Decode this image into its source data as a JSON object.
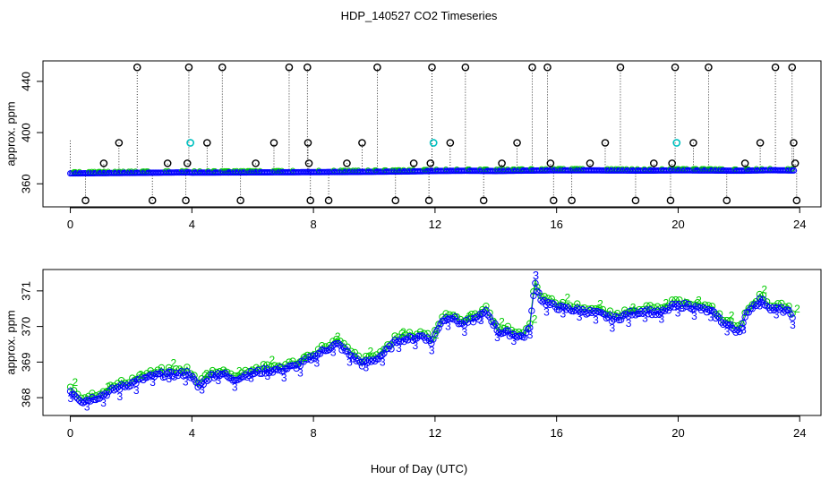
{
  "figure_title": "HDP_140527  CO2 Timeseries",
  "shared_xlabel": "Hour of Day (UTC)",
  "colors": {
    "axis": "#000000",
    "series_1": "#00cc00",
    "series_2": "#0000ff",
    "outlier": "#000000",
    "flag": "#00c0c0"
  },
  "chart_data": [
    {
      "type": "scatter",
      "panel": "top",
      "title": "",
      "xlabel": "",
      "ylabel": "approx. ppm",
      "xlim": [
        -0.9,
        24.7
      ],
      "ylim": [
        342,
        456
      ],
      "xticks": [
        0,
        4,
        8,
        12,
        16,
        20,
        24
      ],
      "yticks": [
        360,
        400,
        440
      ],
      "baseline": [
        [
          0.0,
          368.1
        ],
        [
          1.0,
          368.3
        ],
        [
          2.0,
          368.5
        ],
        [
          3.0,
          368.7
        ],
        [
          3.9,
          368.9
        ],
        [
          4.0,
          368.7
        ],
        [
          5.0,
          368.8
        ],
        [
          6.0,
          368.9
        ],
        [
          7.0,
          369.0
        ],
        [
          8.0,
          369.1
        ],
        [
          9.0,
          369.2
        ],
        [
          10.0,
          369.4
        ],
        [
          11.0,
          369.6
        ],
        [
          12.0,
          370.0
        ],
        [
          13.0,
          370.2
        ],
        [
          14.0,
          370.0
        ],
        [
          15.0,
          370.3
        ],
        [
          16.0,
          370.5
        ],
        [
          17.0,
          370.5
        ],
        [
          18.0,
          370.4
        ],
        [
          19.0,
          370.3
        ],
        [
          20.0,
          370.5
        ],
        [
          21.0,
          370.4
        ],
        [
          22.0,
          370.2
        ],
        [
          23.0,
          370.6
        ],
        [
          23.8,
          370.4
        ]
      ],
      "outliers": [
        [
          0.5,
          347
        ],
        [
          1.1,
          376
        ],
        [
          1.6,
          392
        ],
        [
          2.2,
          451
        ],
        [
          2.7,
          347
        ],
        [
          3.2,
          376
        ],
        [
          3.8,
          347
        ],
        [
          3.85,
          376
        ],
        [
          3.9,
          451
        ],
        [
          4.5,
          392
        ],
        [
          5.0,
          451
        ],
        [
          5.6,
          347
        ],
        [
          6.1,
          376
        ],
        [
          6.7,
          392
        ],
        [
          7.2,
          451
        ],
        [
          7.8,
          451
        ],
        [
          7.82,
          392
        ],
        [
          7.85,
          376
        ],
        [
          7.9,
          347
        ],
        [
          8.5,
          347
        ],
        [
          9.1,
          376
        ],
        [
          9.6,
          392
        ],
        [
          10.1,
          451
        ],
        [
          10.7,
          347
        ],
        [
          11.3,
          376
        ],
        [
          11.8,
          347
        ],
        [
          11.85,
          376
        ],
        [
          11.9,
          451
        ],
        [
          12.5,
          392
        ],
        [
          13.0,
          451
        ],
        [
          13.6,
          347
        ],
        [
          14.2,
          376
        ],
        [
          14.7,
          392
        ],
        [
          15.2,
          451
        ],
        [
          15.7,
          451
        ],
        [
          15.8,
          376
        ],
        [
          15.9,
          347
        ],
        [
          16.5,
          347
        ],
        [
          17.1,
          376
        ],
        [
          17.6,
          392
        ],
        [
          18.1,
          451
        ],
        [
          18.6,
          347
        ],
        [
          19.2,
          376
        ],
        [
          19.75,
          347
        ],
        [
          19.8,
          376
        ],
        [
          19.9,
          451
        ],
        [
          20.5,
          392
        ],
        [
          21.0,
          451
        ],
        [
          21.6,
          347
        ],
        [
          22.2,
          376
        ],
        [
          22.7,
          392
        ],
        [
          23.2,
          451
        ],
        [
          23.75,
          451
        ],
        [
          23.8,
          392
        ],
        [
          23.85,
          376
        ],
        [
          23.9,
          347
        ]
      ],
      "flags": [
        [
          3.95,
          392
        ],
        [
          11.95,
          392
        ],
        [
          19.95,
          392
        ]
      ]
    },
    {
      "type": "scatter",
      "panel": "bottom",
      "title": "",
      "xlabel": "Hour of Day (UTC)",
      "ylabel": "approx. ppm",
      "xlim": [
        -0.9,
        24.7
      ],
      "ylim": [
        367.5,
        371.6
      ],
      "xticks": [
        0,
        4,
        8,
        12,
        16,
        20,
        24
      ],
      "yticks": [
        368,
        369,
        370,
        371
      ],
      "series": [
        {
          "name": "2",
          "marker": "2",
          "color": "#00cc00",
          "offset": 0.12
        },
        {
          "name": "3",
          "marker": "3",
          "color": "#0000ff",
          "offset": 0
        }
      ],
      "curve": [
        [
          0.0,
          368.2
        ],
        [
          0.4,
          367.9
        ],
        [
          1.0,
          368.05
        ],
        [
          1.5,
          368.25
        ],
        [
          2.0,
          368.4
        ],
        [
          2.5,
          368.55
        ],
        [
          3.0,
          368.65
        ],
        [
          3.5,
          368.65
        ],
        [
          3.9,
          368.7
        ],
        [
          4.2,
          368.3
        ],
        [
          4.6,
          368.6
        ],
        [
          5.0,
          368.7
        ],
        [
          5.3,
          368.5
        ],
        [
          5.8,
          368.65
        ],
        [
          6.4,
          368.75
        ],
        [
          7.0,
          368.8
        ],
        [
          7.5,
          368.9
        ],
        [
          8.0,
          369.15
        ],
        [
          8.5,
          369.4
        ],
        [
          8.8,
          369.5
        ],
        [
          9.2,
          369.2
        ],
        [
          9.6,
          368.95
        ],
        [
          10.0,
          369.05
        ],
        [
          10.4,
          369.3
        ],
        [
          10.8,
          369.65
        ],
        [
          11.2,
          369.65
        ],
        [
          11.6,
          369.75
        ],
        [
          11.9,
          369.55
        ],
        [
          12.2,
          370.15
        ],
        [
          12.5,
          370.3
        ],
        [
          12.9,
          370.05
        ],
        [
          13.3,
          370.2
        ],
        [
          13.7,
          370.4
        ],
        [
          14.1,
          369.85
        ],
        [
          14.5,
          369.8
        ],
        [
          14.9,
          369.7
        ],
        [
          15.1,
          369.9
        ],
        [
          15.3,
          371.2
        ],
        [
          15.5,
          370.75
        ],
        [
          15.8,
          370.6
        ],
        [
          16.2,
          370.5
        ],
        [
          16.8,
          370.45
        ],
        [
          17.4,
          370.35
        ],
        [
          17.9,
          370.2
        ],
        [
          18.4,
          370.35
        ],
        [
          18.9,
          370.45
        ],
        [
          19.4,
          370.35
        ],
        [
          19.8,
          370.55
        ],
        [
          20.3,
          370.6
        ],
        [
          20.7,
          370.5
        ],
        [
          21.1,
          370.4
        ],
        [
          21.5,
          370.1
        ],
        [
          21.9,
          369.9
        ],
        [
          22.1,
          369.95
        ],
        [
          22.3,
          370.45
        ],
        [
          22.7,
          370.75
        ],
        [
          23.1,
          370.5
        ],
        [
          23.5,
          370.45
        ],
        [
          23.8,
          370.3
        ]
      ]
    }
  ]
}
